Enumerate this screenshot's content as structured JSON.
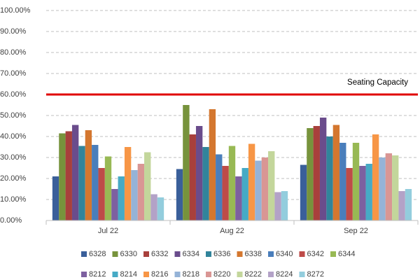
{
  "chart_data": {
    "type": "bar",
    "categories": [
      "Jul 22",
      "Aug 22",
      "Sep 22"
    ],
    "series": [
      {
        "name": "6328",
        "color": "#3a5f9a",
        "values": [
          21,
          24.5,
          26.5
        ]
      },
      {
        "name": "6330",
        "color": "#77933c",
        "values": [
          41.5,
          55,
          44
        ]
      },
      {
        "name": "6332",
        "color": "#a8403c",
        "values": [
          42.5,
          41,
          45
        ]
      },
      {
        "name": "6334",
        "color": "#6a4c8c",
        "values": [
          45.5,
          45,
          49
        ]
      },
      {
        "name": "6336",
        "color": "#31849b",
        "values": [
          35.5,
          35,
          40
        ]
      },
      {
        "name": "6338",
        "color": "#d4772f",
        "values": [
          43,
          53,
          45.5
        ]
      },
      {
        "name": "6340",
        "color": "#4a7ebb",
        "values": [
          36,
          31.5,
          37
        ]
      },
      {
        "name": "6342",
        "color": "#be4b48",
        "values": [
          25,
          26,
          25
        ]
      },
      {
        "name": "6344",
        "color": "#98b954",
        "values": [
          30.5,
          35.5,
          37
        ]
      },
      {
        "name": "8212",
        "color": "#7d60a0",
        "values": [
          15,
          21,
          26
        ]
      },
      {
        "name": "8214",
        "color": "#46aac5",
        "values": [
          21,
          25,
          27
        ]
      },
      {
        "name": "8216",
        "color": "#f79646",
        "values": [
          35,
          36.5,
          41
        ]
      },
      {
        "name": "8218",
        "color": "#95b3d7",
        "values": [
          24,
          28.5,
          30
        ]
      },
      {
        "name": "8220",
        "color": "#d99694",
        "values": [
          27,
          30,
          32
        ]
      },
      {
        "name": "8222",
        "color": "#c3d69b",
        "values": [
          32.5,
          33,
          31
        ]
      },
      {
        "name": "8224",
        "color": "#b3a2c7",
        "values": [
          12.5,
          13.5,
          14
        ]
      },
      {
        "name": "8272",
        "color": "#93cddd",
        "values": [
          11,
          14,
          15
        ]
      }
    ],
    "ylim": [
      0,
      100
    ],
    "yticks": [
      {
        "value": 0,
        "label": "0.00%"
      },
      {
        "value": 10,
        "label": "10.00%"
      },
      {
        "value": 20,
        "label": "20.00%"
      },
      {
        "value": 30,
        "label": "30.00%"
      },
      {
        "value": 40,
        "label": "40.00%"
      },
      {
        "value": 50,
        "label": "50.00%"
      },
      {
        "value": 60,
        "label": "60.00%"
      },
      {
        "value": 70,
        "label": "70.00%"
      },
      {
        "value": 80,
        "label": "80.00%"
      },
      {
        "value": 90,
        "label": "90.00%"
      },
      {
        "value": 100,
        "label": "100.00%"
      }
    ],
    "grid": true,
    "reference_line": {
      "value": 60,
      "label": "Seating Capacity",
      "color": "#e00000"
    },
    "legend": "bottom"
  }
}
